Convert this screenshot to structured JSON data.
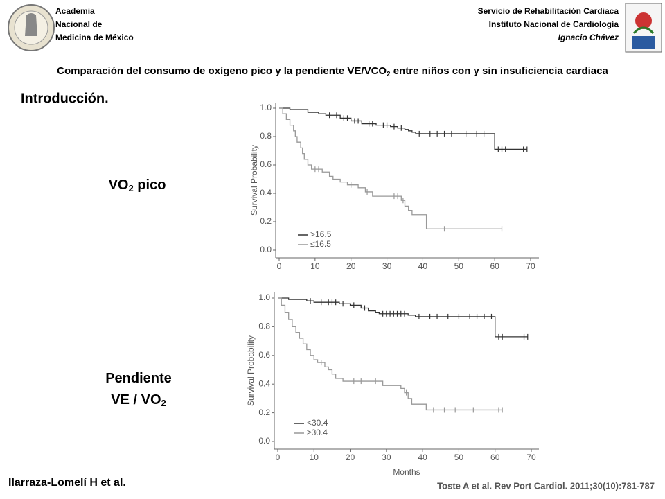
{
  "header": {
    "left": [
      "Academia",
      "Nacional de",
      "Medicina de México"
    ],
    "right": [
      "Servicio de Rehabilitación Cardiaca",
      "Instituto Nacional de Cardiología",
      "Ignacio Chávez"
    ]
  },
  "title": [
    "Comparación del consumo de oxígeno pico y la pendiente VE/VCO",
    "2",
    " entre niños con y sin insuficiencia cardiaca"
  ],
  "section": "Introducción.",
  "labels": [
    [
      "VO",
      "2",
      " pico"
    ],
    [
      "Pendiente"
    ],
    [
      "VE / VO",
      "2"
    ]
  ],
  "footer": {
    "author": "Ilarraza-Lomelí H et al.",
    "citation": "Toste A et al. Rev Port Cardiol. 2011;30(10):781-787"
  },
  "chart_data": [
    {
      "type": "step",
      "ylabel": "Survival Probability",
      "legend": "lower left",
      "xlim": [
        0,
        70
      ],
      "ylim": [
        0,
        1
      ],
      "xticks": [
        0,
        10,
        20,
        30,
        40,
        50,
        60,
        70
      ],
      "yticks": [
        {
          "value": 0,
          "label": "0.0"
        },
        0.2,
        0.4,
        0.6,
        0.8,
        {
          "value": 1,
          "label": "1.0"
        }
      ],
      "series": [
        {
          "name": ">16.5",
          "color": "#333333",
          "x": [
            0,
            3,
            8,
            11,
            13,
            17,
            20,
            23,
            27,
            31,
            33,
            35,
            36,
            37,
            38,
            60,
            69
          ],
          "values": [
            1,
            0.99,
            0.97,
            0.96,
            0.95,
            0.93,
            0.91,
            0.89,
            0.88,
            0.87,
            0.86,
            0.85,
            0.84,
            0.83,
            0.82,
            0.71,
            0.71
          ],
          "censored_x": [
            14,
            16,
            18,
            19,
            21,
            22,
            25,
            26,
            29,
            30,
            32,
            34,
            39,
            42,
            44,
            46,
            48,
            52,
            55,
            57,
            61,
            62,
            63,
            68,
            69
          ],
          "censored_y": [
            0.95,
            0.95,
            0.93,
            0.93,
            0.91,
            0.91,
            0.89,
            0.89,
            0.88,
            0.88,
            0.87,
            0.86,
            0.82,
            0.82,
            0.82,
            0.82,
            0.82,
            0.82,
            0.82,
            0.82,
            0.71,
            0.71,
            0.71,
            0.71,
            0.71
          ]
        },
        {
          "name": "≤16.5",
          "color": "#999999",
          "x": [
            0,
            1,
            2,
            3,
            4,
            4.5,
            5,
            6,
            6.5,
            7,
            8,
            9,
            12,
            14,
            15,
            17,
            19,
            22,
            24,
            26,
            34,
            35,
            36,
            37,
            41,
            62
          ],
          "values": [
            1,
            0.96,
            0.92,
            0.88,
            0.84,
            0.8,
            0.76,
            0.72,
            0.68,
            0.64,
            0.6,
            0.57,
            0.55,
            0.52,
            0.5,
            0.48,
            0.46,
            0.44,
            0.41,
            0.38,
            0.35,
            0.31,
            0.28,
            0.25,
            0.15,
            0.15
          ],
          "censored_x": [
            10,
            11,
            20,
            24.5,
            32,
            33,
            34.5,
            46,
            62
          ],
          "censored_y": [
            0.57,
            0.57,
            0.46,
            0.41,
            0.38,
            0.38,
            0.35,
            0.15,
            0.15
          ]
        }
      ]
    },
    {
      "type": "step",
      "ylabel": "Survival Probability",
      "xlabel": "Months",
      "legend": "lower left",
      "xlim": [
        0,
        70
      ],
      "ylim": [
        0,
        1
      ],
      "xticks": [
        0,
        10,
        20,
        30,
        40,
        50,
        60,
        70
      ],
      "yticks": [
        {
          "value": 0,
          "label": "0.0"
        },
        0.2,
        0.4,
        0.6,
        0.8,
        {
          "value": 1,
          "label": "1.0"
        }
      ],
      "series": [
        {
          "name": "<30.4",
          "color": "#333333",
          "x": [
            0,
            3,
            8,
            10,
            17,
            20,
            23,
            25,
            27,
            28,
            36,
            38,
            60,
            69
          ],
          "values": [
            1,
            0.99,
            0.98,
            0.97,
            0.96,
            0.95,
            0.93,
            0.91,
            0.9,
            0.89,
            0.88,
            0.87,
            0.73,
            0.73
          ],
          "censored_x": [
            9,
            12,
            14,
            15,
            16,
            18,
            21,
            24,
            29,
            30,
            31,
            32,
            33,
            34,
            35,
            39,
            42,
            44,
            47,
            50,
            53,
            55,
            57,
            59,
            61,
            62,
            68,
            69
          ],
          "censored_y": [
            0.98,
            0.97,
            0.97,
            0.97,
            0.97,
            0.96,
            0.95,
            0.93,
            0.89,
            0.89,
            0.89,
            0.89,
            0.89,
            0.89,
            0.89,
            0.87,
            0.87,
            0.87,
            0.87,
            0.87,
            0.87,
            0.87,
            0.87,
            0.87,
            0.73,
            0.73,
            0.73,
            0.73
          ]
        },
        {
          "name": "≥30.4",
          "color": "#999999",
          "x": [
            0,
            1,
            2,
            3,
            4,
            5,
            6,
            7,
            8,
            9,
            10,
            11,
            13,
            14,
            15,
            16,
            18,
            29,
            34,
            35,
            36,
            37,
            41,
            62
          ],
          "values": [
            1,
            0.95,
            0.9,
            0.85,
            0.8,
            0.76,
            0.72,
            0.68,
            0.64,
            0.6,
            0.57,
            0.55,
            0.52,
            0.5,
            0.47,
            0.44,
            0.42,
            0.39,
            0.37,
            0.34,
            0.3,
            0.26,
            0.22,
            0.22
          ],
          "censored_x": [
            12,
            21,
            23,
            27,
            35.5,
            43,
            46,
            49,
            54,
            61,
            62
          ],
          "censored_y": [
            0.55,
            0.42,
            0.42,
            0.42,
            0.34,
            0.22,
            0.22,
            0.22,
            0.22,
            0.22,
            0.22
          ]
        }
      ]
    }
  ]
}
